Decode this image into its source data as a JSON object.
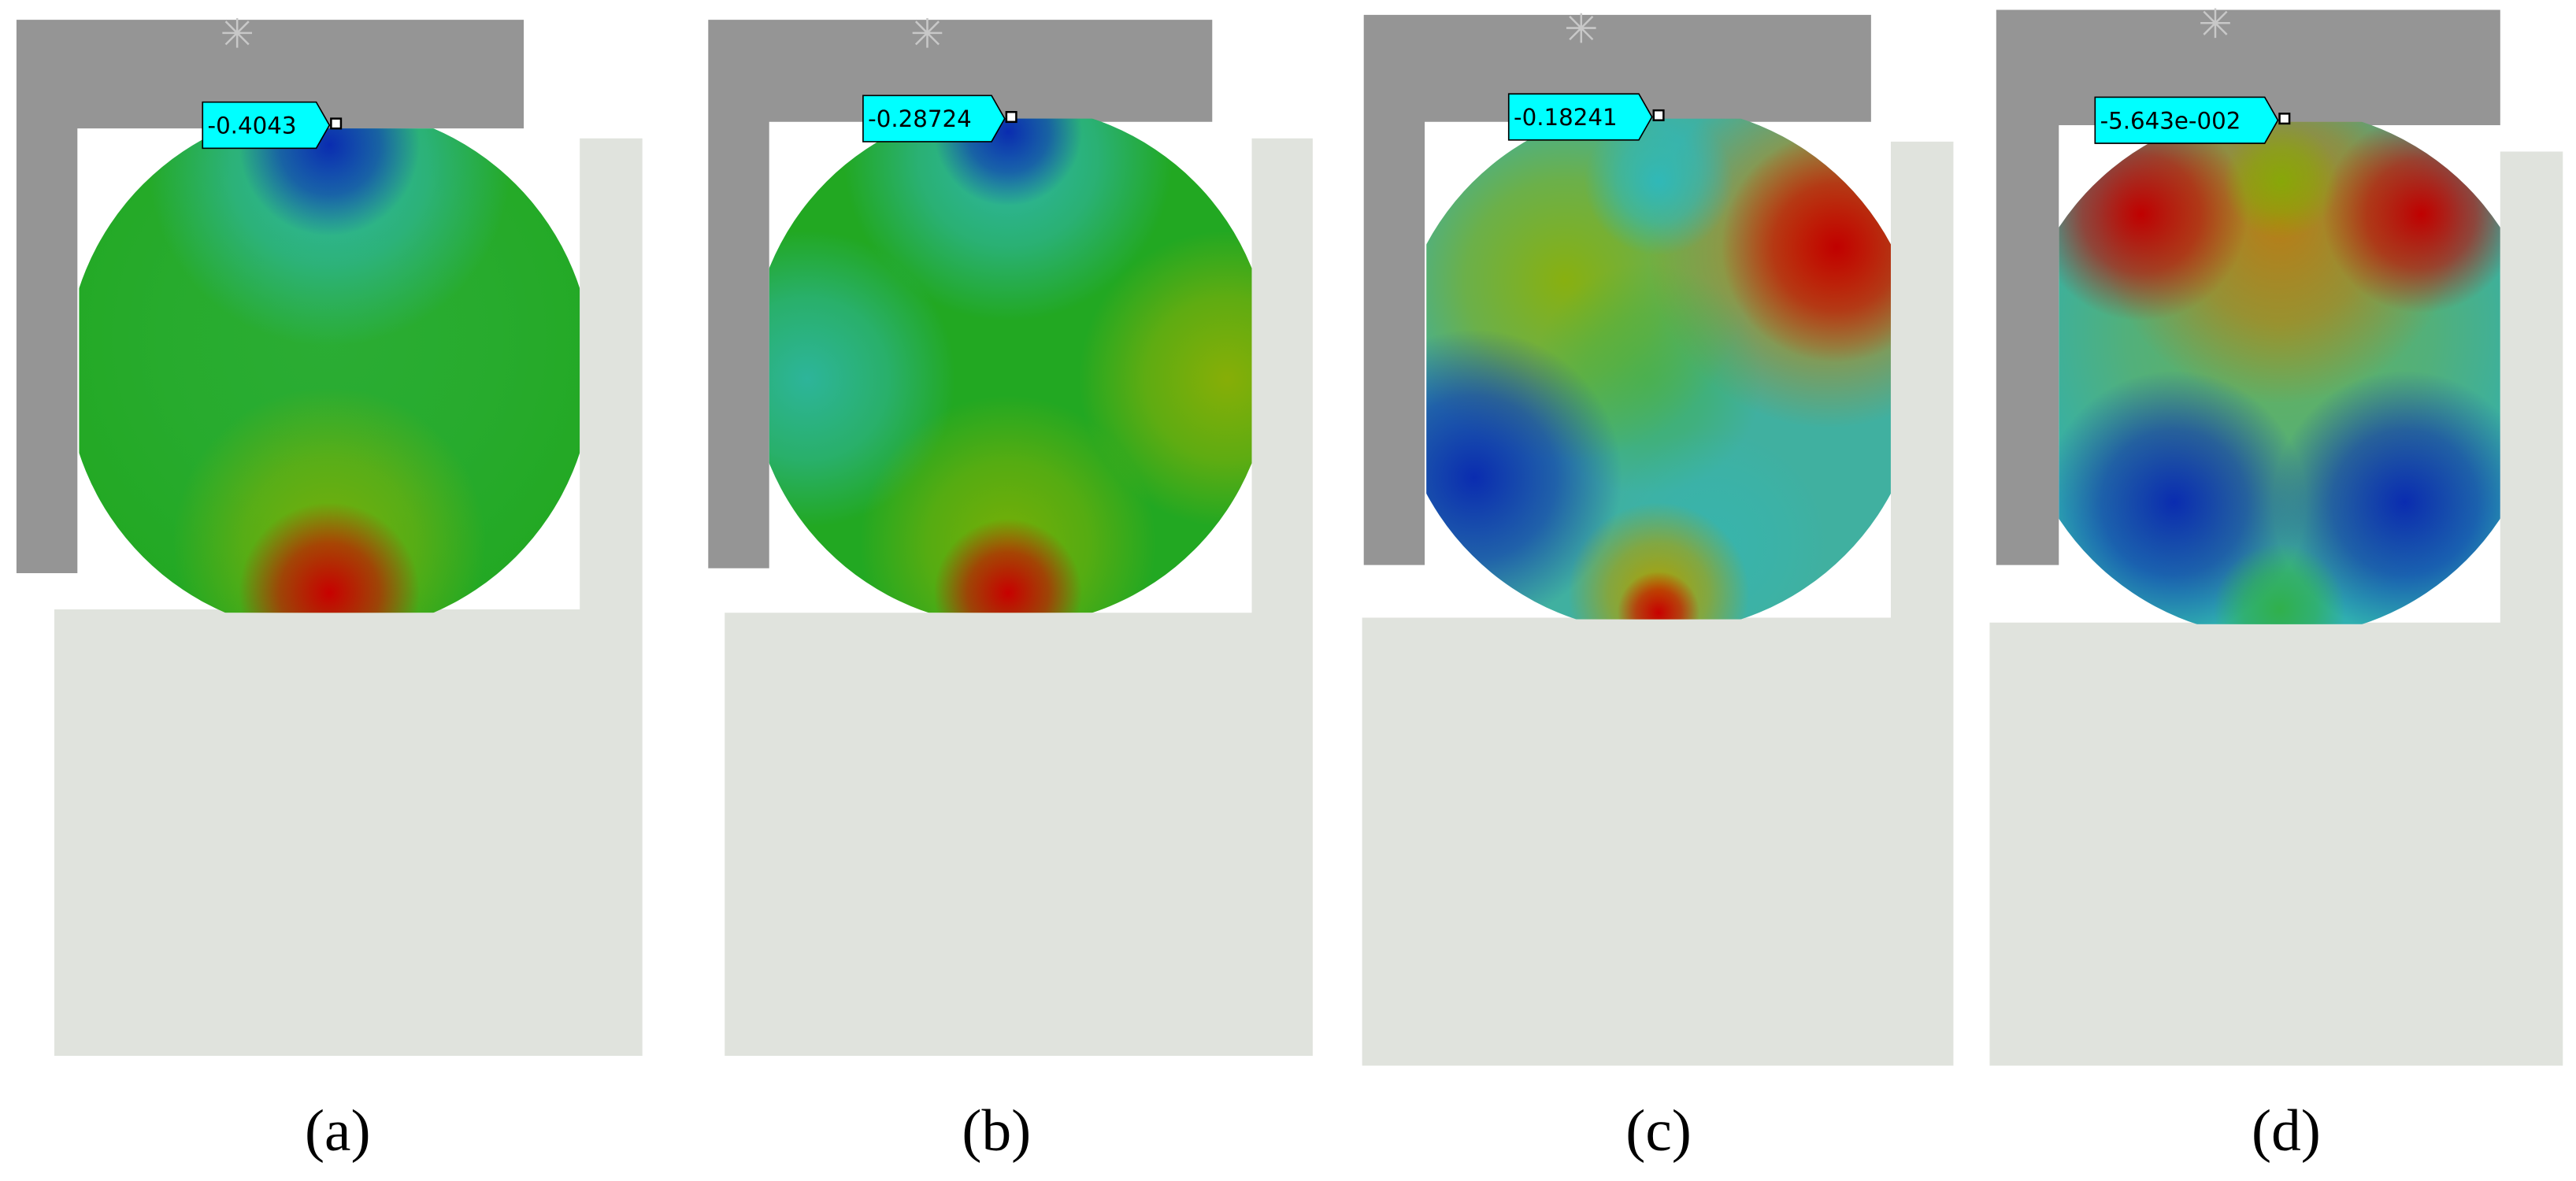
{
  "panels": [
    {
      "probe": "-0.4043",
      "caption": "(a)"
    },
    {
      "probe": "-0.28724",
      "caption": "(b)"
    },
    {
      "probe": "-0.18241",
      "caption": "(c)"
    },
    {
      "probe": "-5.643e-002",
      "caption": "(d)"
    }
  ]
}
